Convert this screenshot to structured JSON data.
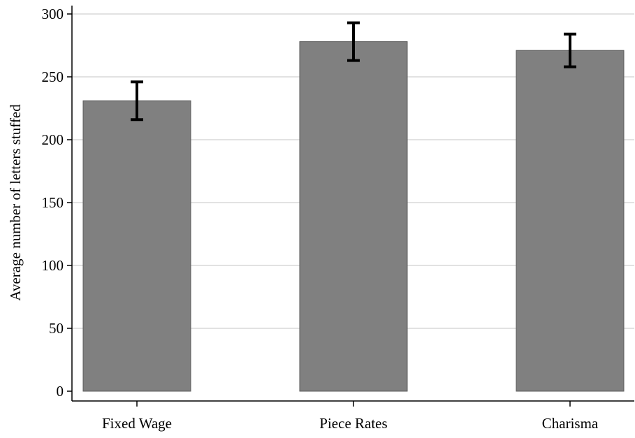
{
  "chart_data": {
    "type": "bar",
    "title": "",
    "xlabel": "",
    "ylabel": "Average number of letters stuffed",
    "categories": [
      "Fixed Wage",
      "Piece Rates",
      "Charisma"
    ],
    "values": [
      231,
      278,
      271
    ],
    "error_bars": [
      {
        "low": 216,
        "high": 246
      },
      {
        "low": 263,
        "high": 293
      },
      {
        "low": 258,
        "high": 284
      }
    ],
    "ylim": [
      0,
      300
    ],
    "yticks": [
      "0",
      "50",
      "100",
      "150",
      "200",
      "250",
      "300"
    ],
    "grid": true,
    "legend": "none",
    "colors": {
      "bar_fill": "#808080",
      "bar_stroke": "#5a5a5a",
      "grid": "#e2e2e2",
      "error_bar": "#000000",
      "axis": "#000000"
    }
  }
}
